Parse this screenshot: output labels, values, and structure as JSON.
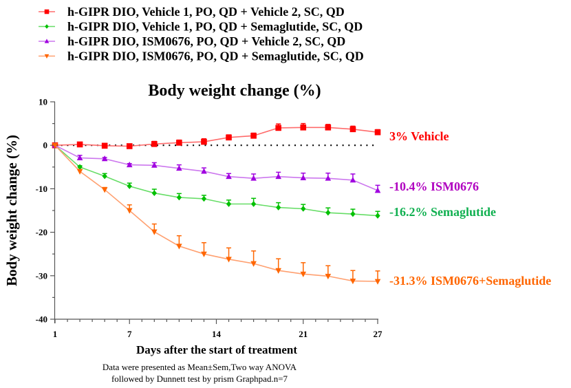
{
  "chart_data": {
    "type": "line",
    "title": "Body weight change (%)",
    "xlabel": "Days after the start of treatment",
    "ylabel": "Body weight change (%)",
    "xlim": [
      1,
      27
    ],
    "ylim": [
      -40,
      10
    ],
    "x_ticks": [
      1,
      7,
      14,
      21,
      27
    ],
    "x_minor_step": 1,
    "y_ticks": [
      10,
      0,
      -10,
      -20,
      -30,
      -40
    ],
    "y_minor_step": 5,
    "reference_line": {
      "y": 0,
      "style": "dotted"
    },
    "legend_position": "top-left",
    "x": [
      1,
      3,
      5,
      7,
      9,
      11,
      13,
      15,
      17,
      19,
      21,
      23,
      25,
      27
    ],
    "series": [
      {
        "name": "h-GIPR DIO, Vehicle 1, PO, QD + Vehicle 2, SC, QD",
        "color": "#ff0000",
        "line_color": "#ff6b6b",
        "marker": "square",
        "values": [
          0,
          0.2,
          -0.1,
          -0.2,
          0.3,
          0.6,
          0.8,
          1.8,
          2.2,
          4.0,
          4.1,
          4.1,
          3.7,
          3.0
        ],
        "sem": [
          0,
          0.3,
          0.4,
          0.3,
          0.6,
          0.6,
          0.7,
          0.6,
          0.6,
          0.9,
          0.9,
          0.7,
          0.7,
          0.6
        ],
        "end_label": "3% Vehicle",
        "end_label_color": "#ff0000"
      },
      {
        "name": "h-GIPR DIO, Vehicle 1, PO, QD + Semaglutide, SC, QD",
        "color": "#00c000",
        "line_color": "#66dd66",
        "marker": "diamond",
        "values": [
          0,
          -5.0,
          -7.1,
          -9.4,
          -11.0,
          -12.0,
          -12.3,
          -13.5,
          -13.5,
          -14.3,
          -14.6,
          -15.5,
          -15.8,
          -16.2
        ],
        "sem": [
          0,
          0.3,
          0.6,
          0.7,
          0.9,
          0.9,
          0.8,
          0.9,
          1.3,
          1.1,
          1.0,
          1.1,
          1.1,
          1.0
        ],
        "end_label": "-16.2% Semaglutide",
        "end_label_color": "#10b050"
      },
      {
        "name": "h-GIPR DIO, ISM0676, PO, QD + Vehicle 2, SC, QD",
        "color": "#a000e0",
        "line_color": "#cc77ee",
        "marker": "triangle-up",
        "values": [
          0,
          -2.9,
          -3.1,
          -4.5,
          -4.6,
          -5.3,
          -6.0,
          -7.2,
          -7.6,
          -7.2,
          -7.5,
          -7.6,
          -8.0,
          -10.4
        ],
        "sem": [
          0,
          0.6,
          0.3,
          0.3,
          0.6,
          0.8,
          0.8,
          0.7,
          1.0,
          1.0,
          1.1,
          1.2,
          1.4,
          1.2
        ],
        "end_label": "-10.4%  ISM0676",
        "end_label_color": "#b000c0"
      },
      {
        "name": "h-GIPR DIO, ISM0676, PO, QD + Semaglutide, SC, QD",
        "color": "#ff6600",
        "line_color": "#ffa070",
        "marker": "triangle-down",
        "values": [
          0,
          -6.0,
          -10.2,
          -15.0,
          -19.9,
          -23.2,
          -25.0,
          -26.2,
          -27.2,
          -28.8,
          -29.6,
          -30.1,
          -31.2,
          -31.3
        ],
        "sem": [
          0,
          0.4,
          0.5,
          1.3,
          1.8,
          2.4,
          2.6,
          2.6,
          2.9,
          2.7,
          2.6,
          2.4,
          2.4,
          2.4
        ],
        "end_label": "-31.3% ISM0676+Semaglutide",
        "end_label_color": "#ff6600"
      }
    ],
    "note_lines": [
      "Data were presented as Mean±Sem,Two way ANOVA",
      "followed by Dunnett test by prism Graphpad.n=7"
    ]
  }
}
